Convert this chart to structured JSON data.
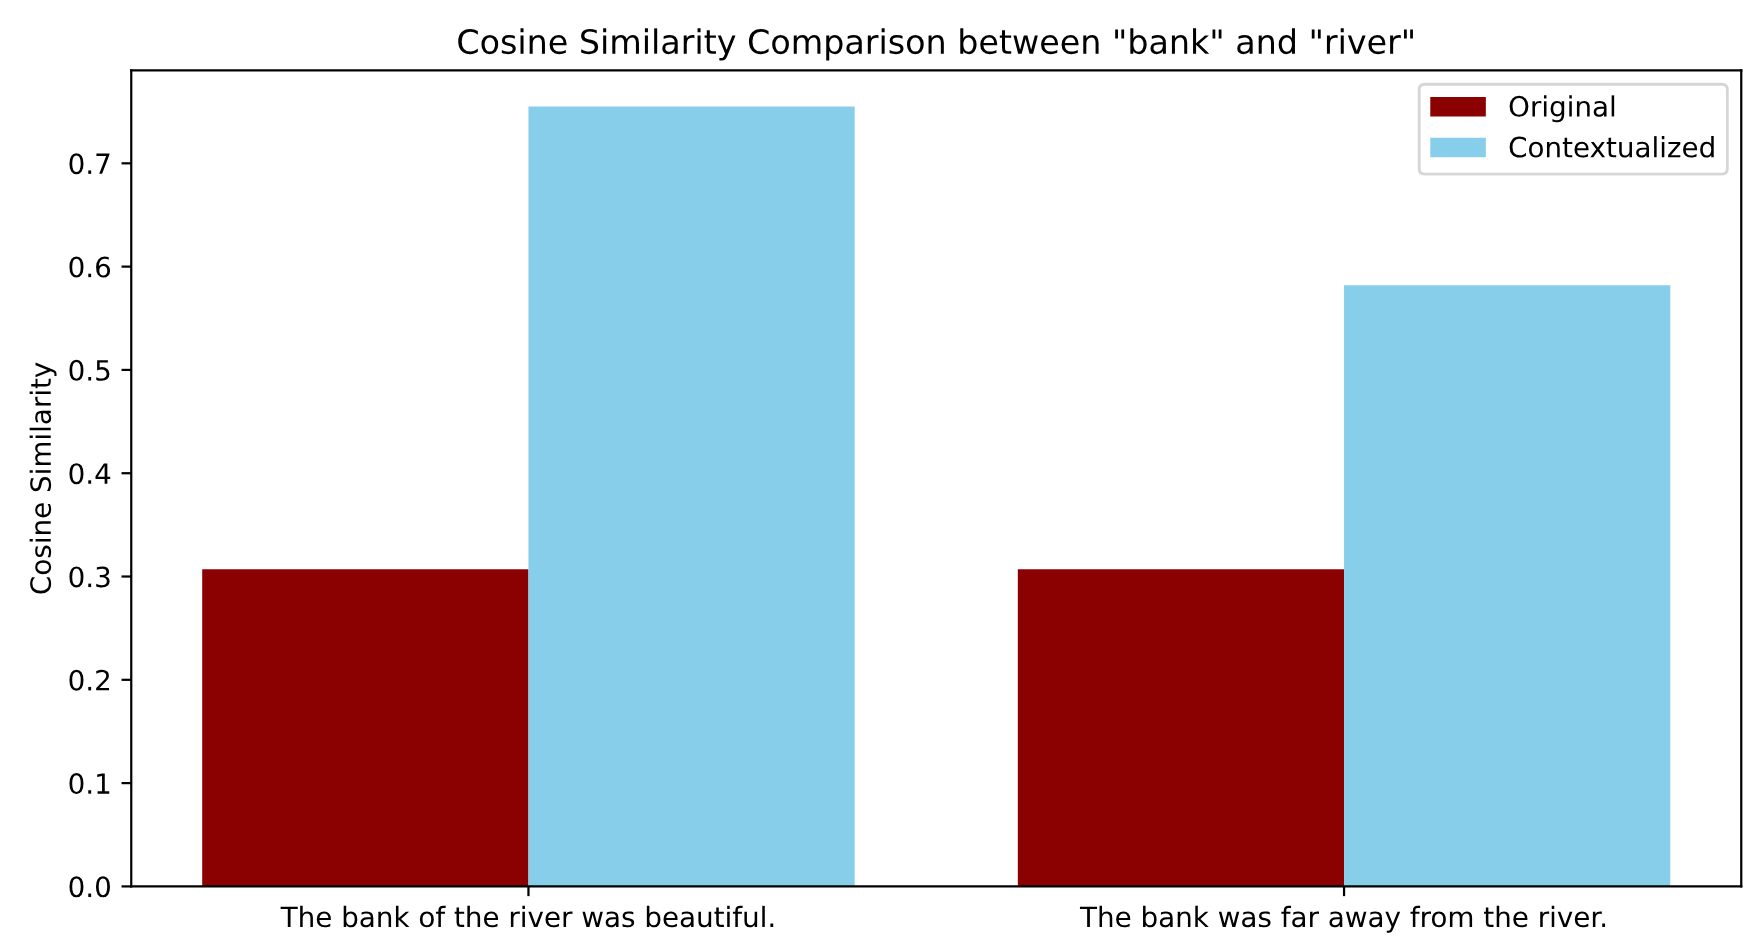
{
  "chart_data": {
    "type": "bar",
    "title": "Cosine Similarity Comparison between \"bank\" and \"river\"",
    "ylabel": "Cosine Similarity",
    "categories": [
      "The bank of the river was beautiful.",
      "The bank was far away from the river."
    ],
    "series": [
      {
        "name": "Original",
        "color": "#8b0000",
        "values": [
          0.307,
          0.307
        ]
      },
      {
        "name": "Contextualized",
        "color": "#87ceeb",
        "values": [
          0.755,
          0.582
        ]
      }
    ],
    "ylim": [
      0,
      0.79
    ],
    "yticks": [
      {
        "value": 0,
        "label": "0.0"
      },
      0.1,
      0.2,
      0.3,
      0.4,
      0.5,
      0.6,
      0.7
    ],
    "legend": "top right",
    "grid": false
  }
}
